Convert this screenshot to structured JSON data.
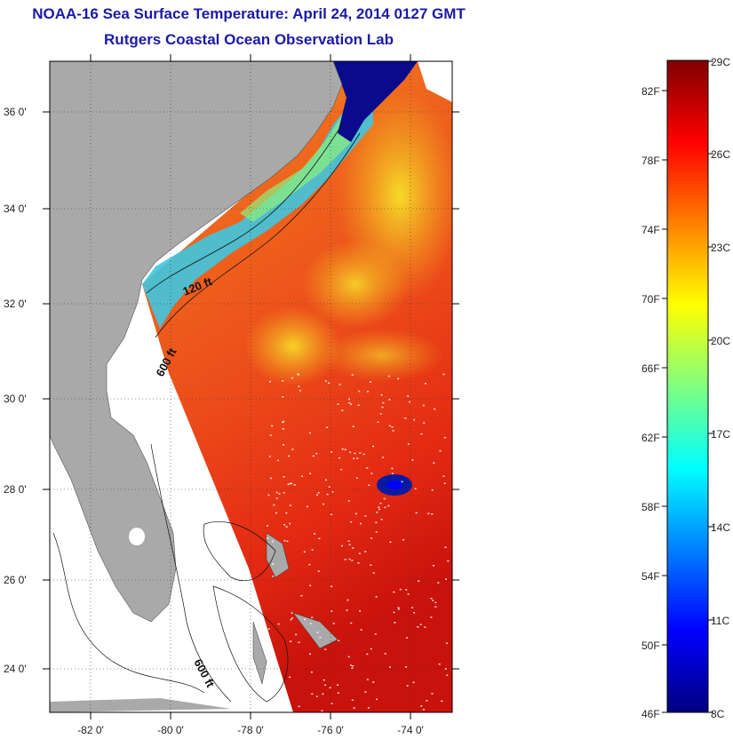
{
  "title": {
    "line1": "NOAA-16 Sea Surface Temperature:  April 24, 2014 0127 GMT",
    "line2": "Rutgers Coastal Ocean Observation Lab"
  },
  "map": {
    "lat_labels": [
      "36 0'",
      "34 0'",
      "32 0'",
      "30 0'",
      "28 0'",
      "26 0'",
      "24 0'"
    ],
    "lon_labels": [
      "-82 0'",
      "-80 0'",
      "-78 0'",
      "-76 0'",
      "-74 0'"
    ],
    "contours": [
      {
        "label": "120 ft"
      },
      {
        "label": "600 ft"
      },
      {
        "label": "600 ft"
      }
    ],
    "colors": {
      "land": "#a9a9a9",
      "nodata": "#ffffff",
      "warm_ocean": "#e8461a",
      "gulf_stream": "#ff2a0a",
      "shelf_cool": "#33c8e6",
      "cold_water": "#0a0a8c",
      "front_yellow": "#f2e628"
    }
  },
  "colorbar": {
    "left_labels": [
      "82F",
      "78F",
      "74F",
      "70F",
      "66F",
      "62F",
      "58F",
      "54F",
      "50F",
      "46F"
    ],
    "right_labels": [
      "29C",
      "26C",
      "23C",
      "20C",
      "17C",
      "14C",
      "11C",
      "8C"
    ],
    "stops": [
      "#00007f",
      "#0000ff",
      "#0080ff",
      "#00ffff",
      "#80ff80",
      "#ffff00",
      "#ff8000",
      "#ff0000",
      "#7f0000"
    ]
  }
}
